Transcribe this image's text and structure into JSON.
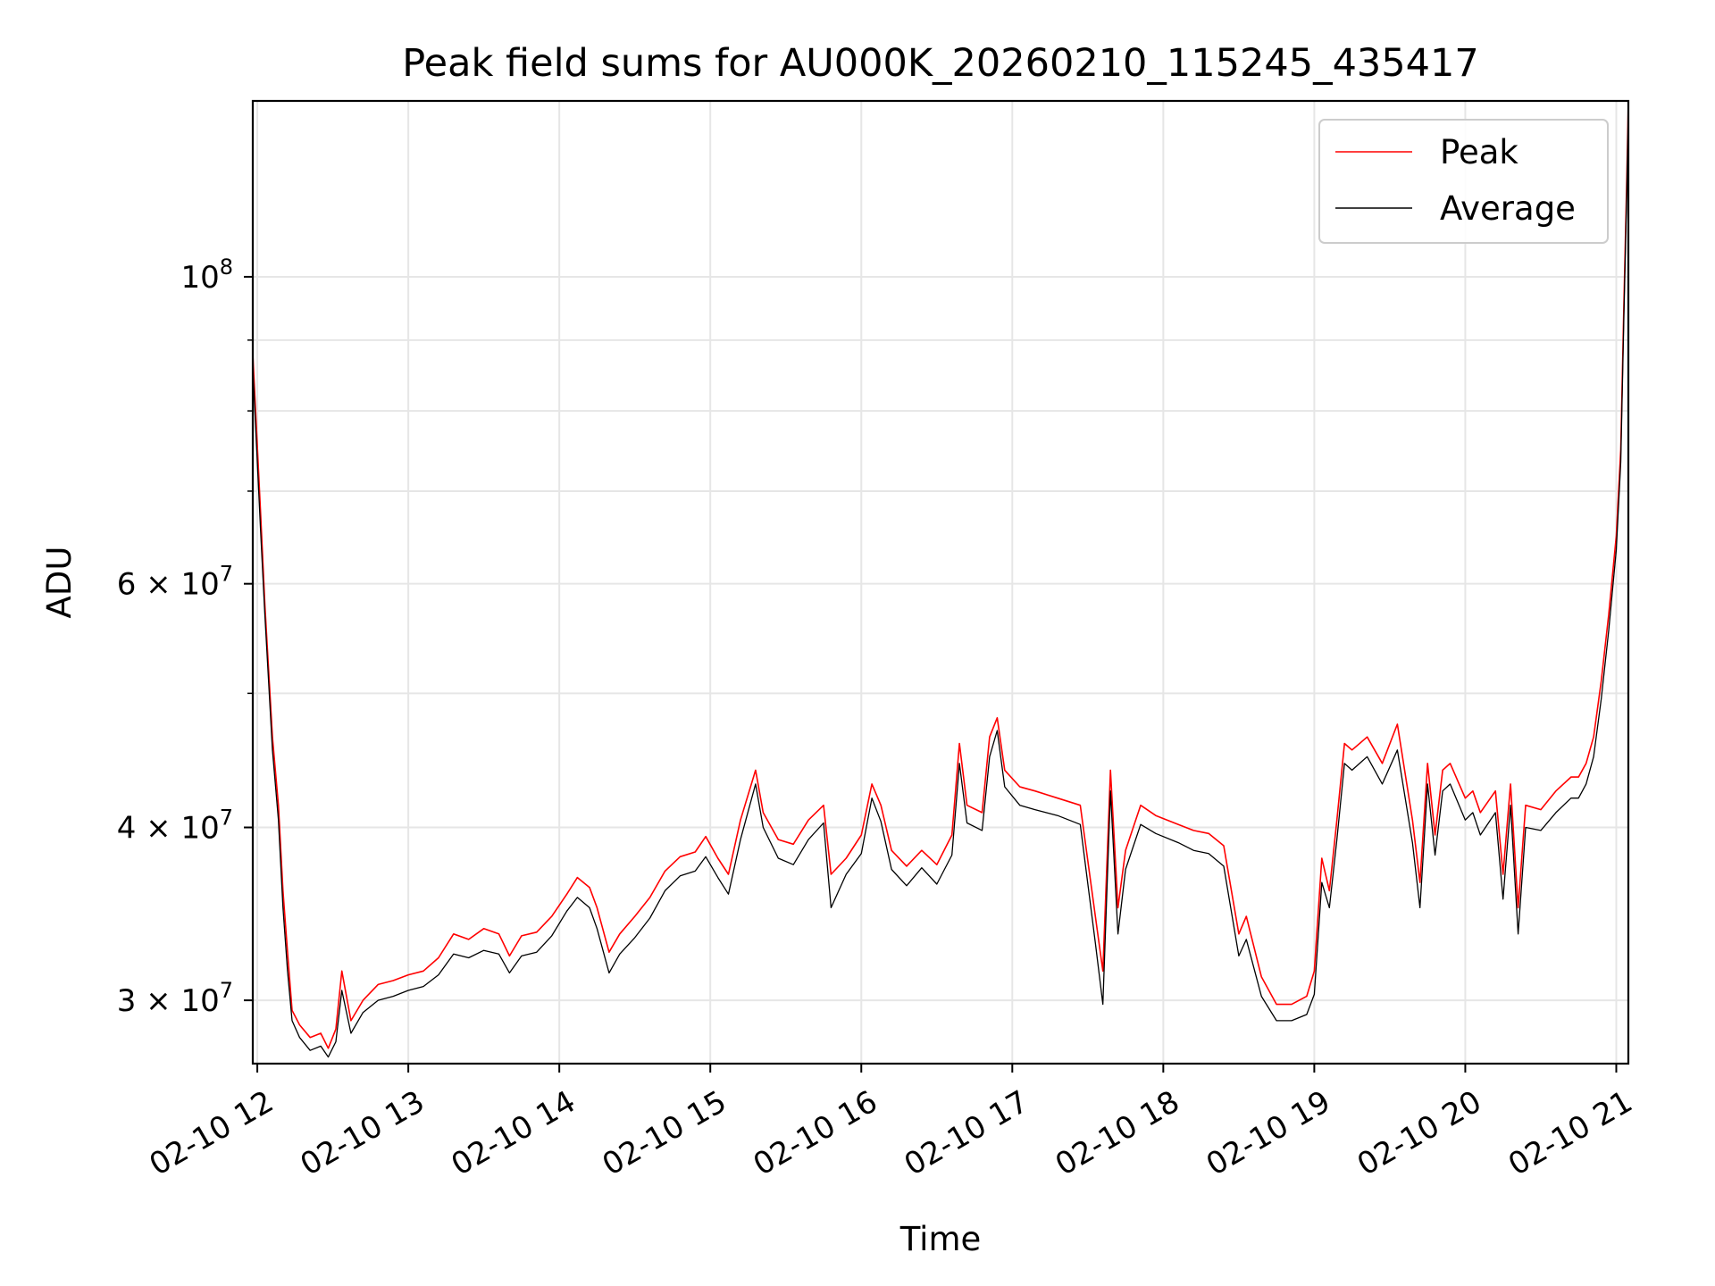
{
  "chart_data": {
    "type": "line",
    "title": "Peak field sums for AU000K_20260210_115245_435417",
    "xlabel": "Time",
    "ylabel": "ADU",
    "yscale": "log",
    "grid": true,
    "legend_position": "top-right",
    "xlim": [
      11.97,
      21.08
    ],
    "ylim": [
      27000000,
      134000000
    ],
    "x_ticks": [
      {
        "value": 12,
        "label": "02-10 12"
      },
      {
        "value": 13,
        "label": "02-10 13"
      },
      {
        "value": 14,
        "label": "02-10 14"
      },
      {
        "value": 15,
        "label": "02-10 15"
      },
      {
        "value": 16,
        "label": "02-10 16"
      },
      {
        "value": 17,
        "label": "02-10 17"
      },
      {
        "value": 18,
        "label": "02-10 18"
      },
      {
        "value": 19,
        "label": "02-10 19"
      },
      {
        "value": 20,
        "label": "02-10 20"
      },
      {
        "value": 21,
        "label": "02-10 21"
      }
    ],
    "y_ticks": [
      {
        "value": 30000000,
        "label_base": "3 × 10",
        "label_exp": "7"
      },
      {
        "value": 40000000,
        "label_base": "4 × 10",
        "label_exp": "7"
      },
      {
        "value": 60000000,
        "label_base": "6 × 10",
        "label_exp": "7"
      },
      {
        "value": 100000000,
        "label_base": "10",
        "label_exp": "8"
      }
    ],
    "y_minor_ticks": [
      50000000,
      70000000,
      80000000,
      90000000
    ],
    "series": [
      {
        "name": "Peak",
        "color": "#ff0000",
        "x": [
          11.97,
          12.02,
          12.05,
          12.1,
          12.14,
          12.17,
          12.2,
          12.23,
          12.28,
          12.35,
          12.42,
          12.47,
          12.52,
          12.56,
          12.62,
          12.7,
          12.8,
          12.9,
          13.0,
          13.1,
          13.2,
          13.3,
          13.4,
          13.5,
          13.6,
          13.67,
          13.75,
          13.85,
          13.95,
          14.05,
          14.12,
          14.2,
          14.25,
          14.33,
          14.4,
          14.5,
          14.6,
          14.7,
          14.8,
          14.9,
          14.97,
          15.05,
          15.12,
          15.2,
          15.3,
          15.35,
          15.45,
          15.55,
          15.65,
          15.75,
          15.8,
          15.9,
          16.0,
          16.07,
          16.13,
          16.2,
          16.3,
          16.4,
          16.5,
          16.6,
          16.65,
          16.7,
          16.8,
          16.85,
          16.9,
          16.95,
          17.05,
          17.15,
          17.3,
          17.45,
          17.55,
          17.6,
          17.65,
          17.7,
          17.75,
          17.85,
          17.95,
          18.1,
          18.2,
          18.3,
          18.4,
          18.5,
          18.55,
          18.65,
          18.75,
          18.85,
          18.95,
          19.0,
          19.05,
          19.1,
          19.15,
          19.2,
          19.25,
          19.35,
          19.45,
          19.55,
          19.65,
          19.7,
          19.75,
          19.8,
          19.85,
          19.9,
          20.0,
          20.05,
          20.1,
          20.2,
          20.25,
          20.3,
          20.35,
          20.4,
          20.5,
          20.6,
          20.7,
          20.75,
          20.8,
          20.85,
          20.9,
          20.95,
          21.0,
          21.03,
          21.05,
          21.07,
          21.08
        ],
        "values": [
          88000000,
          68000000,
          58000000,
          46500000,
          41500000,
          36000000,
          32500000,
          29500000,
          28800000,
          28200000,
          28400000,
          27700000,
          28600000,
          31500000,
          29000000,
          30000000,
          30800000,
          31000000,
          31300000,
          31500000,
          32200000,
          33500000,
          33200000,
          33800000,
          33500000,
          32300000,
          33400000,
          33600000,
          34500000,
          35800000,
          36800000,
          36200000,
          35000000,
          32500000,
          33500000,
          34500000,
          35600000,
          37200000,
          38100000,
          38400000,
          39400000,
          38000000,
          37000000,
          40500000,
          44000000,
          41000000,
          39200000,
          38900000,
          40500000,
          41500000,
          37000000,
          38000000,
          39500000,
          43000000,
          41500000,
          38500000,
          37500000,
          38500000,
          37600000,
          39500000,
          46000000,
          41500000,
          41000000,
          46500000,
          48000000,
          44000000,
          42800000,
          42500000,
          42000000,
          41500000,
          34500000,
          31500000,
          44000000,
          35000000,
          38500000,
          41500000,
          40800000,
          40200000,
          39800000,
          39600000,
          38800000,
          33500000,
          34500000,
          31200000,
          29800000,
          29800000,
          30200000,
          31500000,
          38000000,
          36000000,
          40500000,
          46000000,
          45500000,
          46500000,
          44500000,
          47500000,
          40500000,
          36500000,
          44500000,
          39500000,
          44000000,
          44500000,
          42000000,
          42500000,
          41000000,
          42500000,
          37000000,
          43000000,
          35000000,
          41500000,
          41200000,
          42500000,
          43500000,
          43500000,
          44500000,
          46500000,
          51000000,
          57000000,
          65000000,
          75000000,
          95000000,
          118000000,
          134000000
        ]
      },
      {
        "name": "Average",
        "color": "#000000",
        "x": [
          11.97,
          12.02,
          12.05,
          12.1,
          12.14,
          12.17,
          12.2,
          12.23,
          12.28,
          12.35,
          12.42,
          12.47,
          12.52,
          12.56,
          12.62,
          12.7,
          12.8,
          12.9,
          13.0,
          13.1,
          13.2,
          13.3,
          13.4,
          13.5,
          13.6,
          13.67,
          13.75,
          13.85,
          13.95,
          14.05,
          14.12,
          14.2,
          14.25,
          14.33,
          14.4,
          14.5,
          14.6,
          14.7,
          14.8,
          14.9,
          14.97,
          15.05,
          15.12,
          15.2,
          15.3,
          15.35,
          15.45,
          15.55,
          15.65,
          15.75,
          15.8,
          15.9,
          16.0,
          16.07,
          16.13,
          16.2,
          16.3,
          16.4,
          16.5,
          16.6,
          16.65,
          16.7,
          16.8,
          16.85,
          16.9,
          16.95,
          17.05,
          17.15,
          17.3,
          17.45,
          17.55,
          17.6,
          17.65,
          17.7,
          17.75,
          17.85,
          17.95,
          18.1,
          18.2,
          18.3,
          18.4,
          18.5,
          18.55,
          18.65,
          18.75,
          18.85,
          18.95,
          19.0,
          19.05,
          19.1,
          19.15,
          19.2,
          19.25,
          19.35,
          19.45,
          19.55,
          19.65,
          19.7,
          19.75,
          19.8,
          19.85,
          19.9,
          20.0,
          20.05,
          20.1,
          20.2,
          20.25,
          20.3,
          20.35,
          20.4,
          20.5,
          20.6,
          20.7,
          20.75,
          20.8,
          20.85,
          20.9,
          20.95,
          21.0,
          21.03,
          21.05,
          21.07,
          21.08
        ],
        "values": [
          86000000,
          66000000,
          57000000,
          45500000,
          40500000,
          35000000,
          31500000,
          29000000,
          28200000,
          27600000,
          27800000,
          27300000,
          28000000,
          30500000,
          28400000,
          29400000,
          30000000,
          30200000,
          30500000,
          30700000,
          31300000,
          32400000,
          32200000,
          32600000,
          32400000,
          31400000,
          32300000,
          32500000,
          33400000,
          34800000,
          35600000,
          35000000,
          33800000,
          31400000,
          32400000,
          33300000,
          34400000,
          36000000,
          36900000,
          37200000,
          38100000,
          36800000,
          35800000,
          39200000,
          43000000,
          40000000,
          38000000,
          37600000,
          39200000,
          40300000,
          35000000,
          37000000,
          38300000,
          42000000,
          40400000,
          37300000,
          36300000,
          37400000,
          36400000,
          38200000,
          44500000,
          40300000,
          39800000,
          45000000,
          47000000,
          42800000,
          41500000,
          41200000,
          40800000,
          40200000,
          33000000,
          29800000,
          42500000,
          33500000,
          37300000,
          40200000,
          39600000,
          39000000,
          38500000,
          38300000,
          37500000,
          32300000,
          33200000,
          30200000,
          29000000,
          29000000,
          29300000,
          30300000,
          36500000,
          35000000,
          39200000,
          44500000,
          44000000,
          45000000,
          43000000,
          45500000,
          39000000,
          35000000,
          43000000,
          38200000,
          42500000,
          43000000,
          40500000,
          41000000,
          39500000,
          41000000,
          35500000,
          41500000,
          33500000,
          40000000,
          39800000,
          41000000,
          42000000,
          42000000,
          43000000,
          45000000,
          49500000,
          55500000,
          63500000,
          73500000,
          93000000,
          116000000,
          132000000
        ]
      }
    ]
  }
}
